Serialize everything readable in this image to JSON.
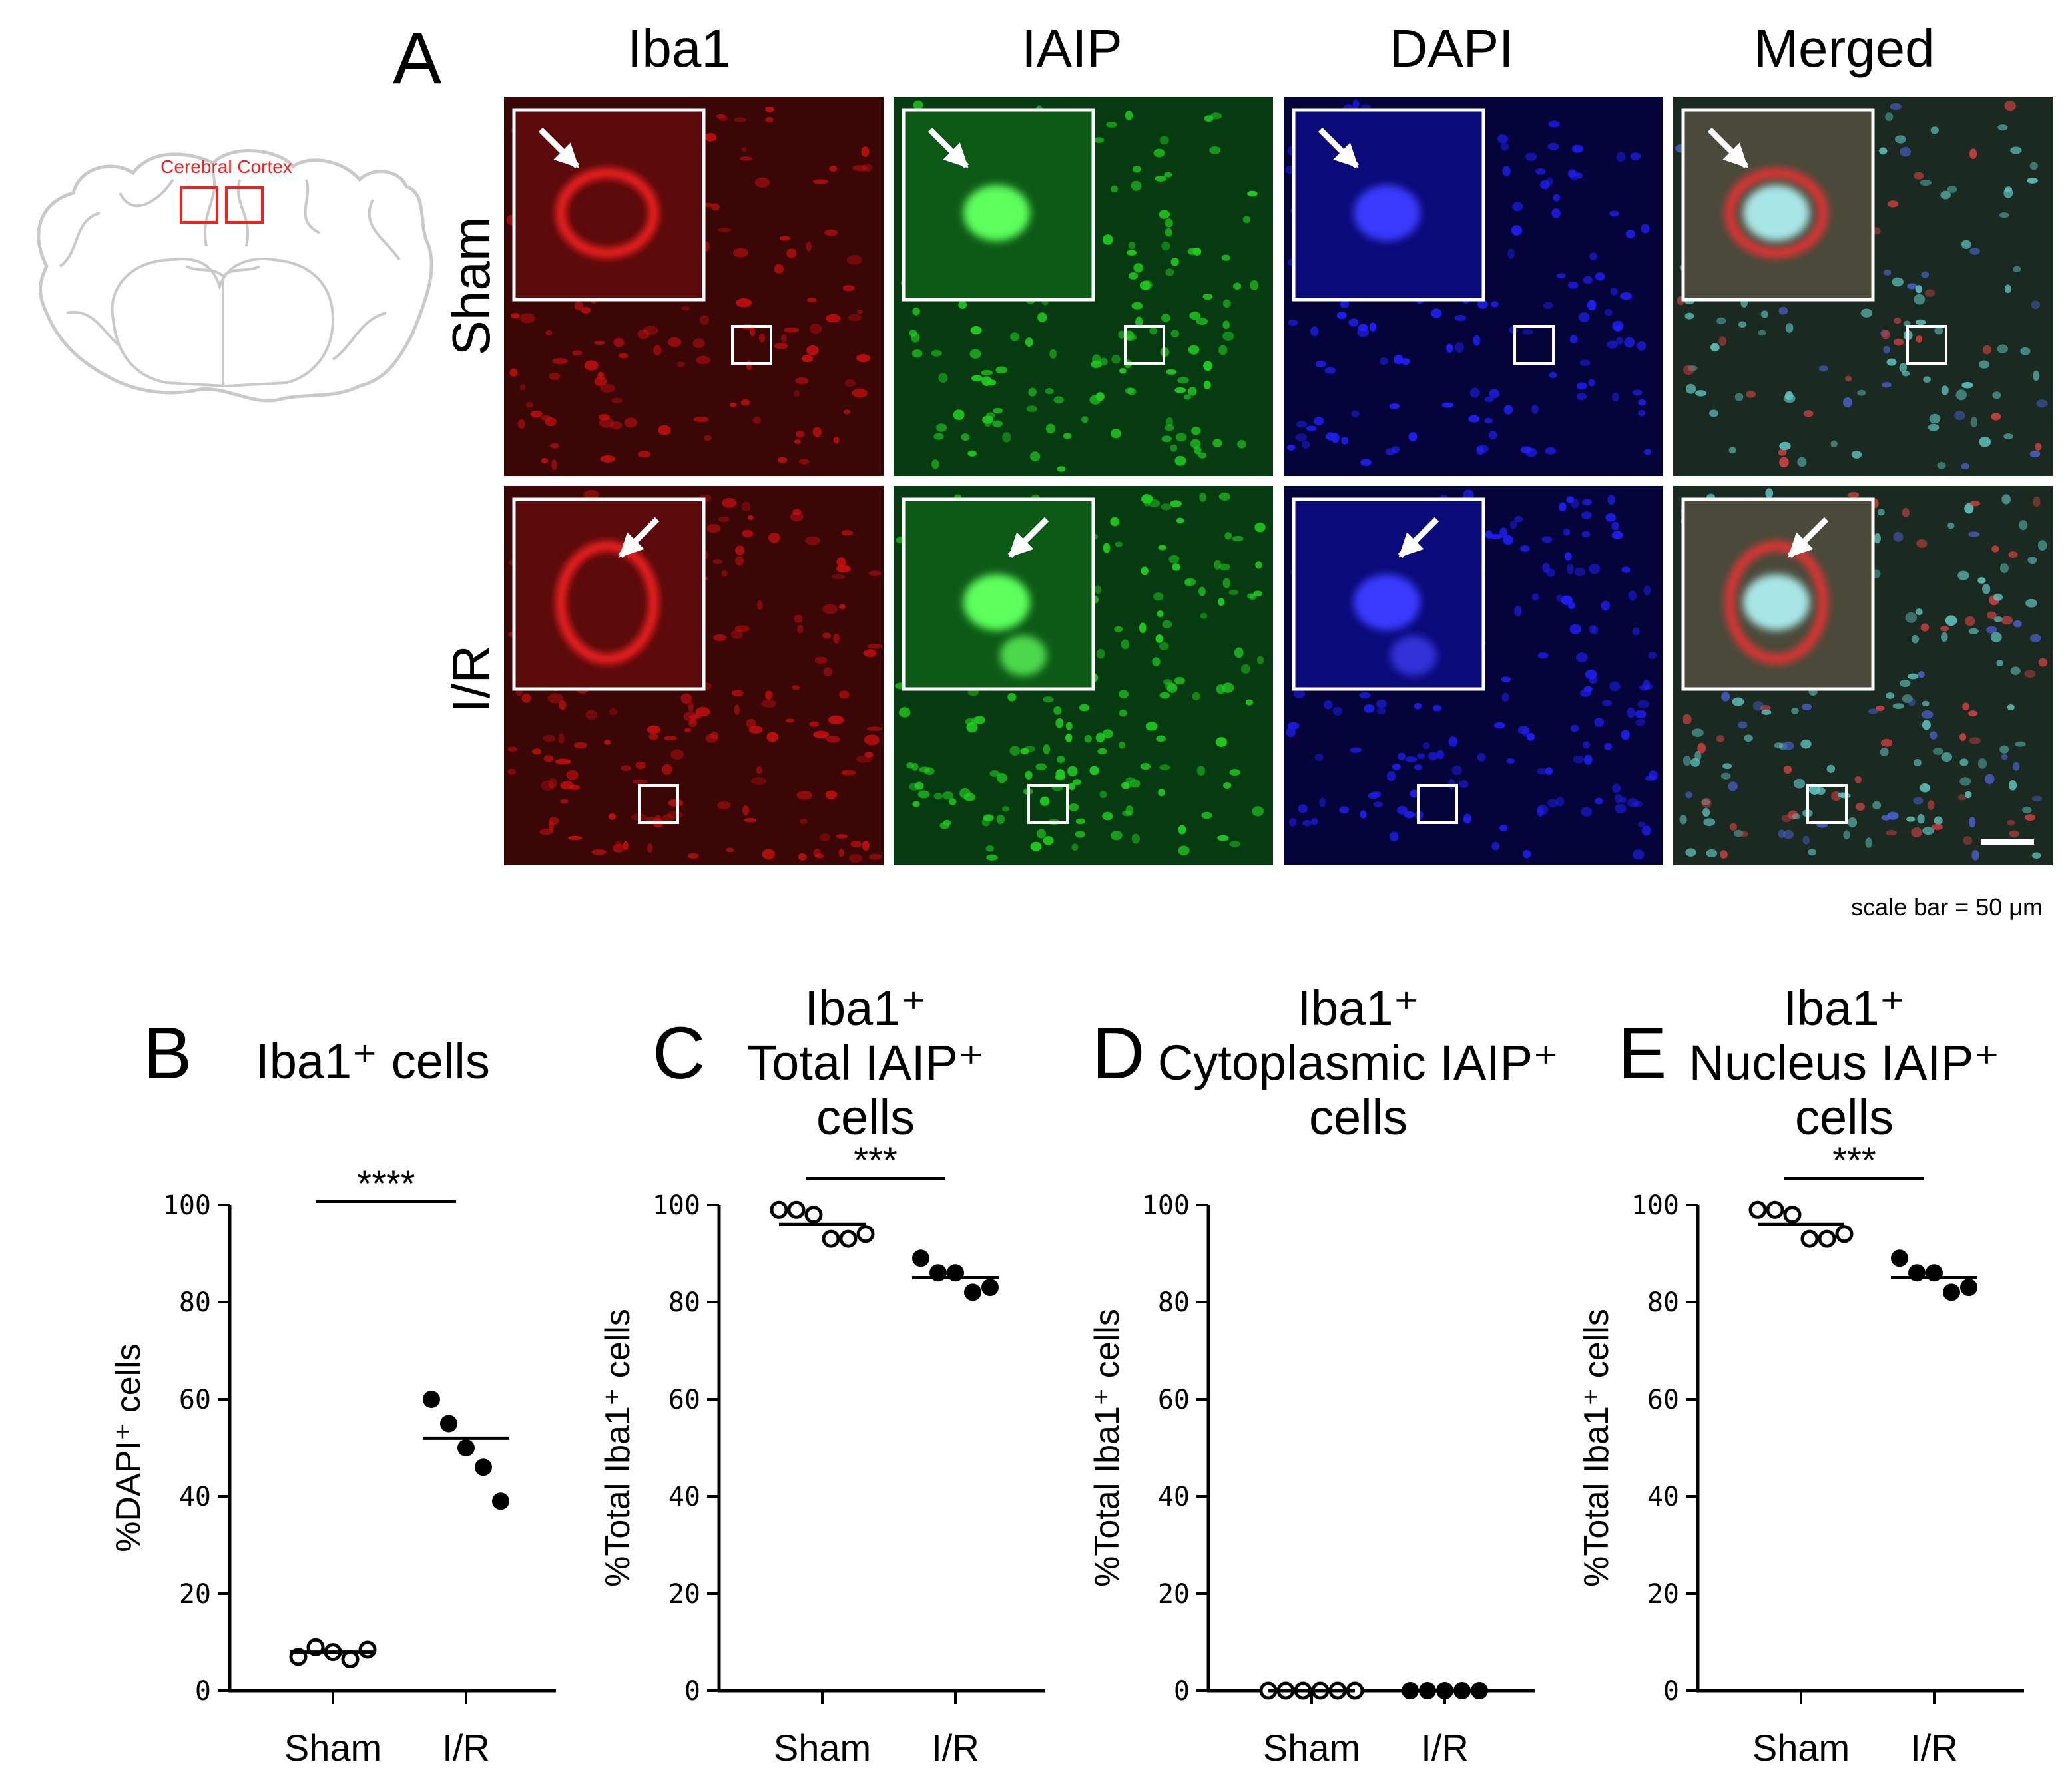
{
  "panel_a": {
    "letter": "A",
    "columns": [
      "Iba1",
      "IAIP",
      "DAPI",
      "Merged"
    ],
    "rows": [
      "Sham",
      "I/R"
    ],
    "brain_region_label": "Cerebral Cortex",
    "scale_bar_text": "scale bar = 50 μm",
    "channel_colors": {
      "Iba1": "#d01010",
      "IAIP": "#20d020",
      "DAPI": "#2020ff",
      "Merged": "#6fc9c9"
    }
  },
  "chart_data": [
    {
      "panel": "B",
      "type": "scatter",
      "title_lines": [
        "Iba1⁺ cells"
      ],
      "ylabel": "%DAPI⁺ cells",
      "categories": [
        "Sham",
        "I/R"
      ],
      "ylim": [
        0,
        100
      ],
      "yticks": [
        "0",
        "20",
        "40",
        "60",
        "80",
        "100"
      ],
      "significance": "****",
      "series": [
        {
          "group": "Sham",
          "marker": "open",
          "values": [
            7,
            9,
            8,
            6.5,
            8.5
          ],
          "mean": 8
        },
        {
          "group": "I/R",
          "marker": "filled",
          "values": [
            60,
            55,
            50,
            46,
            39
          ],
          "mean": 52
        }
      ]
    },
    {
      "panel": "C",
      "type": "scatter",
      "title_lines": [
        "Iba1⁺",
        "Total IAIP⁺",
        "cells"
      ],
      "ylabel": "%Total Iba1⁺ cells",
      "categories": [
        "Sham",
        "I/R"
      ],
      "ylim": [
        0,
        100
      ],
      "yticks": [
        "0",
        "20",
        "40",
        "60",
        "80",
        "100"
      ],
      "significance": "***",
      "series": [
        {
          "group": "Sham",
          "marker": "open",
          "values": [
            99,
            99,
            98,
            93,
            93,
            94
          ],
          "mean": 96
        },
        {
          "group": "I/R",
          "marker": "filled",
          "values": [
            89,
            86,
            86,
            82,
            83
          ],
          "mean": 85
        }
      ]
    },
    {
      "panel": "D",
      "type": "scatter",
      "title_lines": [
        "Iba1⁺",
        "Cytoplasmic IAIP⁺",
        "cells"
      ],
      "ylabel": "%Total Iba1⁺ cells",
      "categories": [
        "Sham",
        "I/R"
      ],
      "ylim": [
        0,
        100
      ],
      "yticks": [
        "0",
        "20",
        "40",
        "60",
        "80",
        "100"
      ],
      "significance": "",
      "series": [
        {
          "group": "Sham",
          "marker": "open",
          "values": [
            0,
            0,
            0,
            0,
            0,
            0
          ],
          "mean": 0
        },
        {
          "group": "I/R",
          "marker": "filled",
          "values": [
            0,
            0,
            0,
            0,
            0
          ],
          "mean": 0
        }
      ]
    },
    {
      "panel": "E",
      "type": "scatter",
      "title_lines": [
        "Iba1⁺",
        "Nucleus IAIP⁺",
        "cells"
      ],
      "ylabel": "%Total Iba1⁺ cells",
      "categories": [
        "Sham",
        "I/R"
      ],
      "ylim": [
        0,
        100
      ],
      "yticks": [
        "0",
        "20",
        "40",
        "60",
        "80",
        "100"
      ],
      "significance": "***",
      "series": [
        {
          "group": "Sham",
          "marker": "open",
          "values": [
            99,
            99,
            98,
            93,
            93,
            94
          ],
          "mean": 96
        },
        {
          "group": "I/R",
          "marker": "filled",
          "values": [
            89,
            86,
            86,
            82,
            83
          ],
          "mean": 85
        }
      ]
    }
  ]
}
